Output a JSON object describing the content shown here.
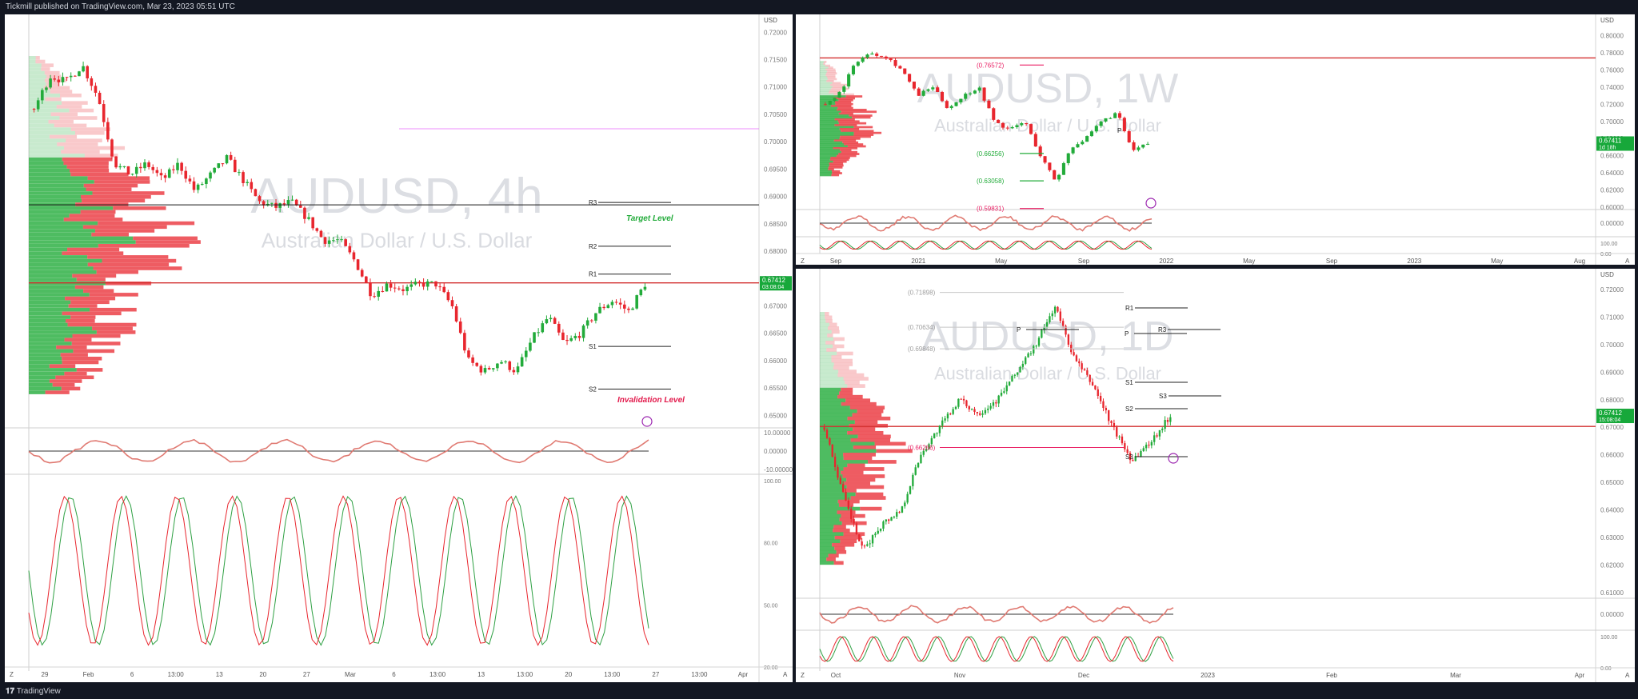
{
  "header": {
    "published": "Tickmill published on TradingView.com, Mar 23, 2023 05:51 UTC"
  },
  "footer": {
    "brand": "TradingView"
  },
  "colors": {
    "up": "#22ab3a",
    "down": "#e8262e",
    "red_line": "#d32f2f",
    "bg": "#131722",
    "price_badge": "#17a83a"
  },
  "charts": {
    "left": {
      "symbol": "AUDUSD, 4h",
      "description": "Australian Dollar / U.S. Dollar",
      "currency": "USD",
      "price_badge": {
        "price": "0.67412",
        "countdown": "03:08:04"
      },
      "annotations": {
        "target": "Target Level",
        "invalidation": "Invalidation Level"
      },
      "pivots": [
        "R3",
        "R2",
        "R1",
        "S1",
        "S2"
      ],
      "price_ticks": [
        "0.72000",
        "0.71500",
        "0.71000",
        "0.70500",
        "0.70000",
        "0.69500",
        "0.69000",
        "0.68500",
        "0.68000",
        "0.67500",
        "0.67000",
        "0.66500",
        "0.66000",
        "0.65500",
        "0.65000"
      ],
      "osc_ticks": [
        "10.00000",
        "0.00000",
        "-10.00000"
      ],
      "stoch_ticks": [
        "100.00",
        "80.00",
        "50.00",
        "20.00"
      ],
      "time_labels": [
        "29",
        "Feb",
        "6",
        "13:00",
        "13",
        "20",
        "27",
        "Mar",
        "6",
        "13:00",
        "13",
        "13:00",
        "20",
        "13:00",
        "27",
        "13:00",
        "Apr"
      ],
      "corner": {
        "left": "Z",
        "right": "A"
      }
    },
    "top_right": {
      "symbol": "AUDUSD, 1W",
      "description": "Australian Dollar / U.S. Dollar",
      "currency": "USD",
      "price_badge": {
        "price": "0.67411",
        "countdown": "1d 18h"
      },
      "fib_labels": [
        "(0.76572)",
        "(0.66256)",
        "(0.63058)",
        "(0.59831)"
      ],
      "pivots": [
        "P"
      ],
      "price_ticks": [
        "0.80000",
        "0.78000",
        "0.76000",
        "0.74000",
        "0.72000",
        "0.70000",
        "0.68000",
        "0.66000",
        "0.64000",
        "0.62000",
        "0.60000"
      ],
      "osc_ticks": [
        "0.00000"
      ],
      "stoch_ticks": [
        "100.00",
        "0.00"
      ],
      "time_labels": [
        "Sep",
        "2021",
        "May",
        "Sep",
        "2022",
        "May",
        "Sep",
        "2023",
        "May",
        "Aug"
      ],
      "corner": {
        "left": "Z",
        "right": "A"
      }
    },
    "bottom_right": {
      "symbol": "AUDUSD, 1D",
      "description": "Australian Dollar / U.S. Dollar",
      "currency": "USD",
      "price_badge": {
        "price": "0.67412",
        "countdown": "15:08:04"
      },
      "fib_labels": [
        "(0.71898)",
        "(0.70634)",
        "(0.69848)",
        "(0.66266)"
      ],
      "pivots": [
        "R1",
        "P",
        "R3",
        "P",
        "S1",
        "S3",
        "S2",
        "S3"
      ],
      "price_ticks": [
        "0.72000",
        "0.71000",
        "0.70000",
        "0.69000",
        "0.68000",
        "0.67000",
        "0.66000",
        "0.65000",
        "0.64000",
        "0.63000",
        "0.62000",
        "0.61000"
      ],
      "osc_ticks": [
        "0.00000"
      ],
      "stoch_ticks": [
        "100.00",
        "0.00"
      ],
      "time_labels": [
        "Oct",
        "Nov",
        "Dec",
        "2023",
        "Feb",
        "Mar",
        "Apr"
      ],
      "corner": {
        "left": "Z",
        "right": "A"
      }
    }
  },
  "chart_data": [
    {
      "type": "candlestick",
      "title": "AUDUSD, 4h",
      "ylim": [
        0.648,
        0.7215
      ],
      "series_shape": [
        [
          "2023-01-26",
          0.706
        ],
        [
          "2023-01-27",
          0.712
        ],
        [
          "2023-01-30",
          0.711
        ],
        [
          "2023-02-01",
          0.714
        ],
        [
          "2023-02-02",
          0.708
        ],
        [
          "2023-02-03",
          0.696
        ],
        [
          "2023-02-06",
          0.694
        ],
        [
          "2023-02-07",
          0.696
        ],
        [
          "2023-02-08",
          0.693
        ],
        [
          "2023-02-09",
          0.696
        ],
        [
          "2023-02-10",
          0.691
        ],
        [
          "2023-02-13",
          0.694
        ],
        [
          "2023-02-14",
          0.697
        ],
        [
          "2023-02-15",
          0.693
        ],
        [
          "2023-02-16",
          0.689
        ],
        [
          "2023-02-17",
          0.688
        ],
        [
          "2023-02-20",
          0.689
        ],
        [
          "2023-02-21",
          0.686
        ],
        [
          "2023-02-22",
          0.682
        ],
        [
          "2023-02-23",
          0.682
        ],
        [
          "2023-02-24",
          0.678
        ],
        [
          "2023-02-27",
          0.672
        ],
        [
          "2023-02-28",
          0.674
        ],
        [
          "2023-03-01",
          0.673
        ],
        [
          "2023-03-02",
          0.674
        ],
        [
          "2023-03-03",
          0.674
        ],
        [
          "2023-03-06",
          0.67
        ],
        [
          "2023-03-07",
          0.66
        ],
        [
          "2023-03-08",
          0.658
        ],
        [
          "2023-03-09",
          0.66
        ],
        [
          "2023-03-10",
          0.658
        ],
        [
          "2023-03-13",
          0.664
        ],
        [
          "2023-03-14",
          0.668
        ],
        [
          "2023-03-15",
          0.663
        ],
        [
          "2023-03-16",
          0.665
        ],
        [
          "2023-03-17",
          0.669
        ],
        [
          "2023-03-20",
          0.671
        ],
        [
          "2023-03-21",
          0.669
        ],
        [
          "2023-03-22",
          0.674
        ]
      ],
      "last_price": 0.67412,
      "levels": {
        "R3": 0.6889,
        "R2": 0.6809,
        "R1": 0.6758,
        "S1": 0.6626,
        "S2": 0.6548
      },
      "red_line": 0.6742
    },
    {
      "type": "candlestick",
      "title": "AUDUSD, 1W",
      "ylim": [
        0.599,
        0.808
      ],
      "series_shape": [
        [
          "2020-09",
          0.72
        ],
        [
          "2020-11",
          0.735
        ],
        [
          "2021-01",
          0.77
        ],
        [
          "2021-02",
          0.78
        ],
        [
          "2021-04",
          0.775
        ],
        [
          "2021-06",
          0.76
        ],
        [
          "2021-08",
          0.73
        ],
        [
          "2021-10",
          0.74
        ],
        [
          "2021-12",
          0.715
        ],
        [
          "2022-02",
          0.73
        ],
        [
          "2022-04",
          0.74
        ],
        [
          "2022-05",
          0.7
        ],
        [
          "2022-07",
          0.69
        ],
        [
          "2022-08",
          0.7
        ],
        [
          "2022-09",
          0.66
        ],
        [
          "2022-10",
          0.63
        ],
        [
          "2022-11",
          0.67
        ],
        [
          "2022-12",
          0.68
        ],
        [
          "2023-01",
          0.7
        ],
        [
          "2023-02",
          0.71
        ],
        [
          "2023-03",
          0.665
        ],
        [
          "2023-03-20",
          0.6741
        ]
      ],
      "last_price": 0.67411,
      "red_line": 0.774
    },
    {
      "type": "candlestick",
      "title": "AUDUSD, 1D",
      "ylim": [
        0.6085,
        0.7235
      ],
      "series_shape": [
        [
          "2022-09-20",
          0.67
        ],
        [
          "2022-10-01",
          0.645
        ],
        [
          "2022-10-13",
          0.625
        ],
        [
          "2022-10-25",
          0.635
        ],
        [
          "2022-11-01",
          0.64
        ],
        [
          "2022-11-10",
          0.66
        ],
        [
          "2022-11-20",
          0.67
        ],
        [
          "2022-12-01",
          0.68
        ],
        [
          "2022-12-15",
          0.675
        ],
        [
          "2022-12-30",
          0.68
        ],
        [
          "2023-01-10",
          0.69
        ],
        [
          "2023-01-20",
          0.7
        ],
        [
          "2023-02-02",
          0.714
        ],
        [
          "2023-02-10",
          0.695
        ],
        [
          "2023-02-20",
          0.685
        ],
        [
          "2023-03-01",
          0.67
        ],
        [
          "2023-03-10",
          0.658
        ],
        [
          "2023-03-15",
          0.665
        ],
        [
          "2023-03-22",
          0.6741
        ]
      ],
      "last_price": 0.67412,
      "red_line": 0.6703
    }
  ]
}
